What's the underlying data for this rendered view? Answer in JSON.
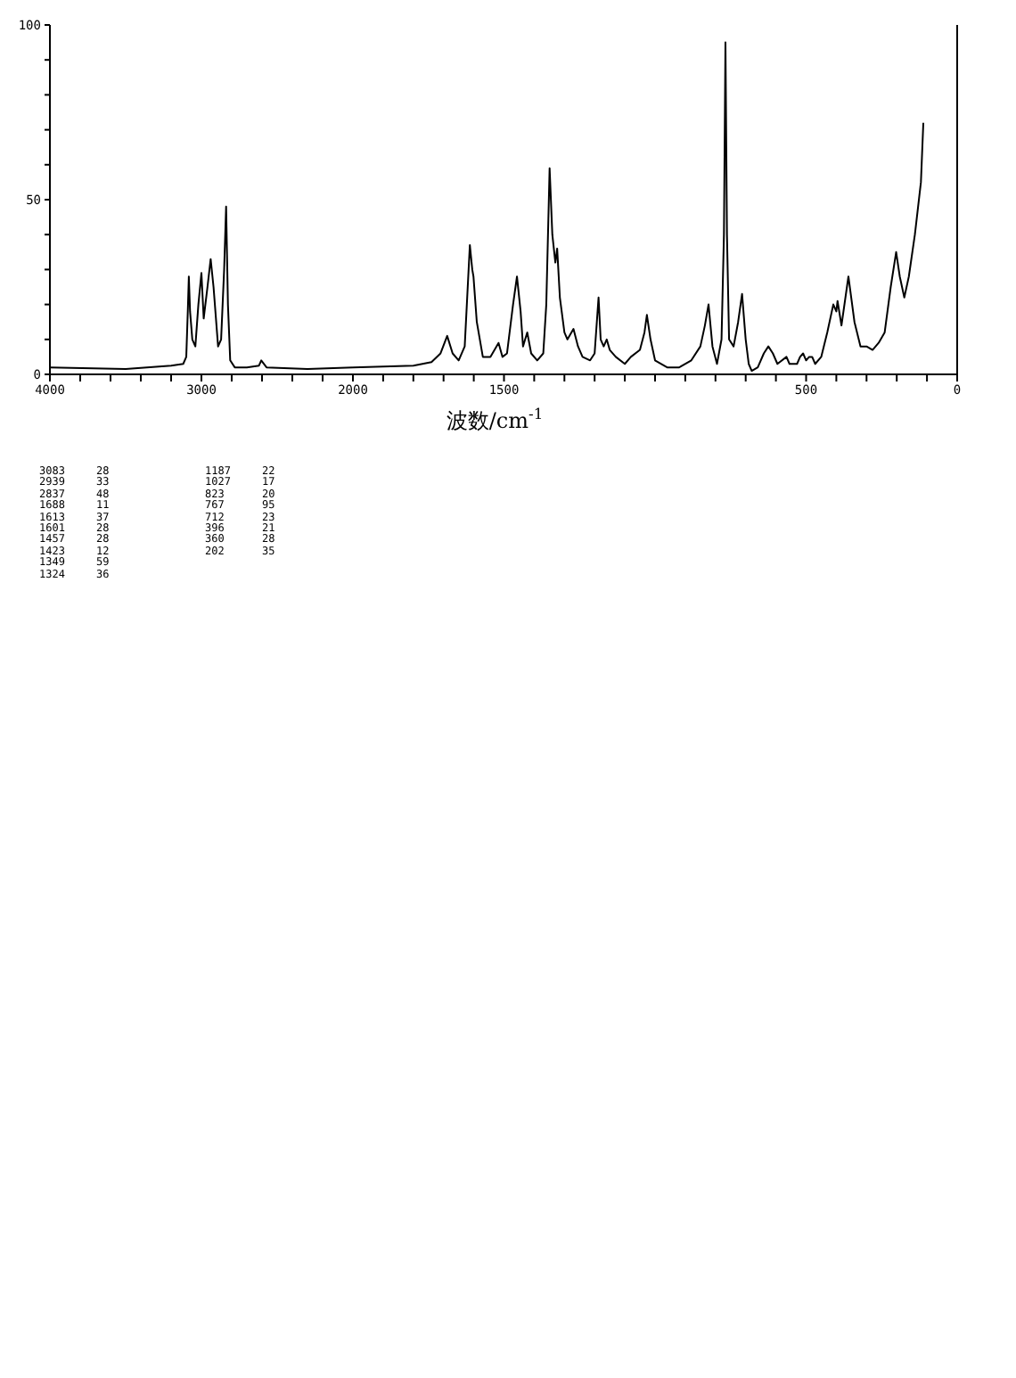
{
  "chart_data": [
    {
      "type": "line",
      "color": "#000000",
      "marker": "none",
      "line_style": "solid",
      "x": [
        4000,
        3500,
        3200,
        3120,
        3100,
        3090,
        3083,
        3075,
        3060,
        3040,
        3020,
        3000,
        2985,
        2960,
        2939,
        2920,
        2890,
        2870,
        2850,
        2837,
        2825,
        2810,
        2780,
        2700,
        2620,
        2605,
        2570,
        2300,
        2000
      ],
      "values": [
        2,
        1.5,
        2.5,
        3,
        5,
        18,
        28,
        18,
        10,
        8,
        20,
        29,
        16,
        25,
        33,
        25,
        8,
        10,
        30,
        48,
        20,
        4,
        2,
        2,
        2.5,
        4,
        2,
        1.5,
        2
      ],
      "xlim": [
        4000,
        2000
      ],
      "xticks": [
        4000,
        {
          "value": 3800,
          "label": null
        },
        {
          "value": 3600,
          "label": null
        },
        {
          "value": 3400,
          "label": null
        },
        {
          "value": 3200,
          "label": null
        },
        3000,
        {
          "value": 2800,
          "label": null
        },
        {
          "value": 2600,
          "label": null
        },
        {
          "value": 2400,
          "label": null
        },
        {
          "value": 2200,
          "label": null
        }
      ],
      "ylim": [
        0,
        100
      ],
      "yticks": [
        0,
        {
          "value": 10,
          "label": null
        },
        {
          "value": 20,
          "label": null
        },
        {
          "value": 30,
          "label": null
        },
        {
          "value": 40,
          "label": null
        },
        50,
        {
          "value": 60,
          "label": null
        },
        {
          "value": 70,
          "label": null
        },
        {
          "value": 80,
          "label": null
        },
        {
          "value": 90,
          "label": null
        },
        100
      ]
    },
    {
      "type": "line",
      "xlabel": "波数/cm$^{-1}$",
      "color": "#000000",
      "marker": "none",
      "line_style": "solid",
      "tick_labels": "x",
      "x": [
        2000,
        1800,
        1740,
        1710,
        1688,
        1670,
        1650,
        1630,
        1613,
        1605,
        1601,
        1590,
        1570,
        1545,
        1518,
        1505,
        1490,
        1470,
        1457,
        1445,
        1437,
        1430,
        1423,
        1410,
        1390,
        1370,
        1360,
        1349,
        1340,
        1330,
        1324,
        1315,
        1300,
        1290,
        1270,
        1255,
        1240,
        1215,
        1200,
        1187,
        1180,
        1170,
        1160,
        1150,
        1130,
        1100,
        1080,
        1050,
        1035,
        1027,
        1015,
        1000,
        960,
        920,
        880,
        850,
        835,
        823,
        810,
        795,
        780,
        772,
        767,
        762,
        755,
        740,
        725,
        712,
        700,
        690,
        680,
        660,
        640,
        625,
        610,
        595,
        565,
        555,
        530,
        520,
        510,
        500,
        490,
        480,
        470,
        450,
        430,
        410,
        400,
        396,
        383,
        360,
        340,
        320,
        300,
        280,
        260,
        240,
        220,
        202,
        190,
        175,
        160,
        140,
        120,
        112
      ],
      "values": [
        2,
        2.5,
        3.5,
        6,
        11,
        6,
        4,
        8,
        37,
        30,
        28,
        15,
        5,
        5,
        9,
        5,
        6,
        20,
        28,
        18,
        8,
        10,
        12,
        6,
        4,
        6,
        20,
        59,
        40,
        32,
        36,
        22,
        12,
        10,
        13,
        8,
        5,
        4,
        6,
        22,
        10,
        8,
        10,
        7,
        5,
        3,
        5,
        7,
        12,
        17,
        10,
        4,
        2,
        2,
        4,
        8,
        14,
        20,
        8,
        3,
        10,
        40,
        95,
        40,
        10,
        8,
        15,
        23,
        10,
        3,
        1,
        2,
        6,
        8,
        6,
        3,
        5,
        3,
        3,
        5,
        6,
        4,
        5,
        5,
        3,
        5,
        12,
        20,
        18,
        21,
        14,
        28,
        15,
        8,
        8,
        7,
        9,
        12,
        25,
        35,
        28,
        22,
        28,
        40,
        55,
        72
      ],
      "xlim": [
        2000,
        0
      ],
      "xticks": [
        2000,
        {
          "value": 1900,
          "label": null
        },
        {
          "value": 1800,
          "label": null
        },
        {
          "value": 1700,
          "label": null
        },
        {
          "value": 1600,
          "label": null
        },
        1500,
        {
          "value": 1400,
          "label": null
        },
        {
          "value": 1300,
          "label": null
        },
        {
          "value": 1200,
          "label": null
        },
        {
          "value": 1100,
          "label": null
        },
        {
          "value": 1000,
          "label": null
        },
        {
          "value": 900,
          "label": null
        },
        {
          "value": 800,
          "label": null
        },
        {
          "value": 700,
          "label": null
        },
        {
          "value": 600,
          "label": null
        },
        500,
        {
          "value": 400,
          "label": null
        },
        {
          "value": 300,
          "label": null
        },
        {
          "value": 200,
          "label": null
        },
        {
          "value": 100,
          "label": null
        },
        0
      ],
      "ylim": [
        0,
        100
      ],
      "annotations": [
        "3083 28",
        "2939 33",
        "2837 48",
        "1688 11",
        "1613 37",
        "1601 28",
        "1457 28",
        "1423 12",
        "1349 59",
        "1324 36",
        "1187 22",
        "1027 17",
        "823 20",
        "767 95",
        "712 23",
        "396 21",
        "360 28",
        "202 35"
      ]
    }
  ]
}
